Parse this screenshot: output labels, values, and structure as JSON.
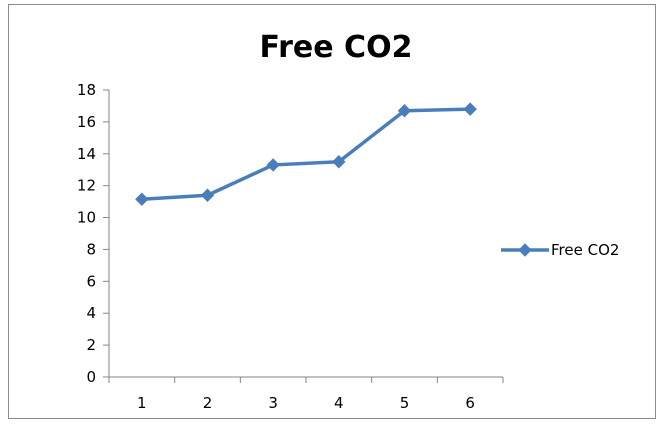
{
  "chart_data": {
    "type": "line",
    "title": "Free CO2",
    "xlabel": "",
    "ylabel": "",
    "categories": [
      "1",
      "2",
      "3",
      "4",
      "5",
      "6"
    ],
    "series": [
      {
        "name": "Free CO2",
        "values": [
          11.15,
          11.4,
          13.3,
          13.5,
          16.7,
          16.8
        ],
        "color": "#4a7ebb",
        "marker": "diamond"
      }
    ],
    "ylim": [
      0,
      18
    ],
    "yticks": [
      0,
      2,
      4,
      6,
      8,
      10,
      12,
      14,
      16,
      18
    ],
    "grid": false,
    "legend": "right"
  }
}
